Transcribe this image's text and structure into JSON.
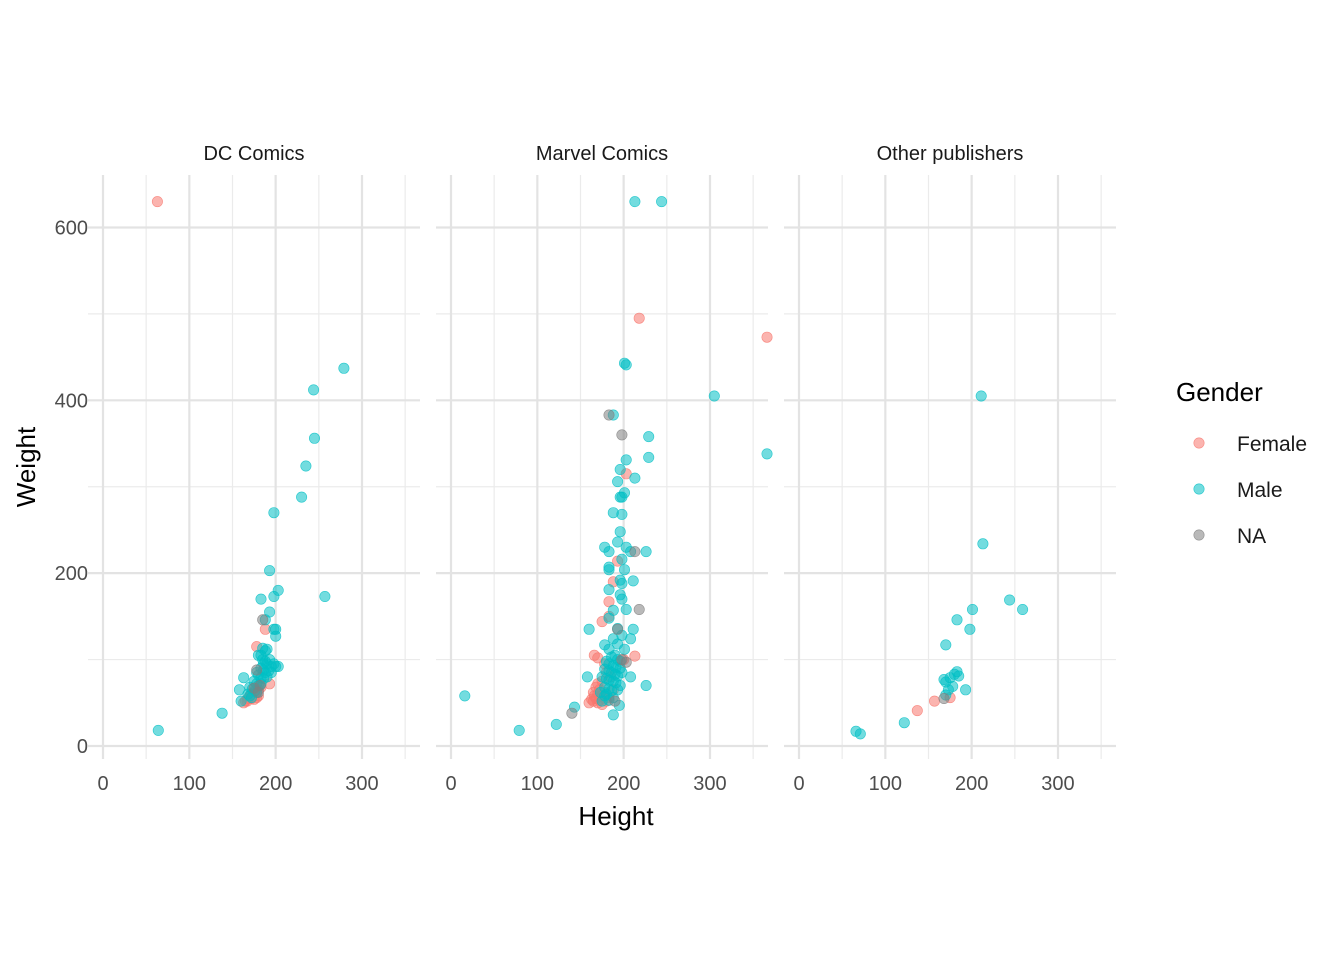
{
  "chart_data": {
    "type": "scatter",
    "xlabel": "Height",
    "ylabel": "Weight",
    "xlim": [
      0,
      375
    ],
    "ylim": [
      -15,
      660
    ],
    "x_ticks": [
      0,
      100,
      200,
      300
    ],
    "y_ticks": [
      0,
      200,
      400,
      600
    ],
    "grid": true,
    "legend": {
      "title": "Gender",
      "position": "right",
      "entries": [
        {
          "label": "Female",
          "color": "#F8766D"
        },
        {
          "label": "Male",
          "color": "#00BFC4"
        },
        {
          "label": "NA",
          "color": "#7F7F7F"
        }
      ]
    },
    "point_opacity": 0.55,
    "panels": [
      {
        "title": "DC Comics",
        "series": [
          {
            "name": "Female",
            "points": [
              [
                63,
                630
              ],
              [
                178,
                115
              ],
              [
                188,
                135
              ],
              [
                193,
                72
              ],
              [
                165,
                52
              ],
              [
                168,
                55
              ],
              [
                170,
                58
              ],
              [
                172,
                55
              ],
              [
                175,
                54
              ],
              [
                178,
                56
              ],
              [
                180,
                58
              ],
              [
                163,
                50
              ],
              [
                167,
                52
              ],
              [
                172,
                60
              ],
              [
                176,
                62
              ],
              [
                180,
                65
              ],
              [
                183,
                68
              ]
            ]
          },
          {
            "name": "Male",
            "points": [
              [
                64,
                18
              ],
              [
                138,
                38
              ],
              [
                160,
                52
              ],
              [
                158,
                65
              ],
              [
                163,
                79
              ],
              [
                279,
                437
              ],
              [
                244,
                412
              ],
              [
                245,
                356
              ],
              [
                235,
                324
              ],
              [
                230,
                288
              ],
              [
                198,
                270
              ],
              [
                193,
                203
              ],
              [
                203,
                180
              ],
              [
                198,
                173
              ],
              [
                183,
                170
              ],
              [
                188,
                146
              ],
              [
                193,
                155
              ],
              [
                198,
                135
              ],
              [
                200,
                135
              ],
              [
                200,
                127
              ],
              [
                185,
                113
              ],
              [
                190,
                112
              ],
              [
                180,
                105
              ],
              [
                185,
                100
              ],
              [
                188,
                98
              ],
              [
                190,
                95
              ],
              [
                193,
                100
              ],
              [
                195,
                92
              ],
              [
                198,
                95
              ],
              [
                200,
                92
              ],
              [
                203,
                92
              ],
              [
                183,
                90
              ],
              [
                186,
                88
              ],
              [
                188,
                85
              ],
              [
                192,
                87
              ],
              [
                195,
                85
              ],
              [
                178,
                85
              ],
              [
                180,
                82
              ],
              [
                183,
                79
              ],
              [
                186,
                78
              ],
              [
                190,
                80
              ],
              [
                175,
                75
              ],
              [
                178,
                72
              ],
              [
                180,
                70
              ],
              [
                183,
                72
              ],
              [
                170,
                68
              ],
              [
                173,
                66
              ],
              [
                176,
                64
              ],
              [
                178,
                62
              ],
              [
                168,
                60
              ],
              [
                170,
                58
              ],
              [
                172,
                56
              ],
              [
                257,
                173
              ],
              [
                188,
                110
              ],
              [
                183,
                105
              ],
              [
                186,
                95
              ]
            ]
          },
          {
            "name": "NA",
            "points": [
              [
                185,
                146
              ],
              [
                178,
                88
              ],
              [
                182,
                70
              ],
              [
                175,
                67
              ],
              [
                180,
                62
              ]
            ]
          }
        ]
      },
      {
        "title": "Marvel Comics",
        "series": [
          {
            "name": "Female",
            "points": [
              [
                218,
                495
              ],
              [
                366,
                473
              ],
              [
                203,
                315
              ],
              [
                193,
                214
              ],
              [
                188,
                190
              ],
              [
                183,
                167
              ],
              [
                183,
                150
              ],
              [
                175,
                144
              ],
              [
                166,
                105
              ],
              [
                170,
                102
              ],
              [
                213,
                104
              ],
              [
                200,
                100
              ],
              [
                178,
                95
              ],
              [
                180,
                85
              ],
              [
                185,
                80
              ],
              [
                175,
                75
              ],
              [
                170,
                72
              ],
              [
                168,
                68
              ],
              [
                172,
                65
              ],
              [
                165,
                62
              ],
              [
                170,
                60
              ],
              [
                175,
                58
              ],
              [
                178,
                55
              ],
              [
                168,
                55
              ],
              [
                172,
                53
              ],
              [
                165,
                52
              ],
              [
                170,
                50
              ],
              [
                175,
                48
              ],
              [
                180,
                52
              ],
              [
                183,
                56
              ],
              [
                178,
                62
              ],
              [
                188,
                65
              ],
              [
                160,
                50
              ],
              [
                163,
                54
              ],
              [
                166,
                58
              ]
            ]
          },
          {
            "name": "Male",
            "points": [
              [
                213,
                630
              ],
              [
                244,
                630
              ],
              [
                203,
                441
              ],
              [
                201,
                443
              ],
              [
                305,
                405
              ],
              [
                366,
                338
              ],
              [
                188,
                383
              ],
              [
                229,
                358
              ],
              [
                229,
                334
              ],
              [
                203,
                331
              ],
              [
                196,
                320
              ],
              [
                213,
                310
              ],
              [
                193,
                306
              ],
              [
                201,
                293
              ],
              [
                198,
                288
              ],
              [
                196,
                288
              ],
              [
                188,
                270
              ],
              [
                198,
                268
              ],
              [
                196,
                248
              ],
              [
                193,
                236
              ],
              [
                178,
                230
              ],
              [
                203,
                230
              ],
              [
                183,
                225
              ],
              [
                226,
                225
              ],
              [
                198,
                216
              ],
              [
                208,
                225
              ],
              [
                183,
                207
              ],
              [
                183,
                204
              ],
              [
                201,
                204
              ],
              [
                196,
                192
              ],
              [
                211,
                191
              ],
              [
                198,
                188
              ],
              [
                183,
                181
              ],
              [
                196,
                175
              ],
              [
                198,
                170
              ],
              [
                203,
                158
              ],
              [
                188,
                157
              ],
              [
                183,
                148
              ],
              [
                193,
                136
              ],
              [
                160,
                135
              ],
              [
                211,
                135
              ],
              [
                198,
                128
              ],
              [
                208,
                124
              ],
              [
                188,
                124
              ],
              [
                193,
                118
              ],
              [
                178,
                117
              ],
              [
                183,
                112
              ],
              [
                201,
                112
              ],
              [
                190,
                105
              ],
              [
                186,
                103
              ],
              [
                193,
                100
              ],
              [
                196,
                98
              ],
              [
                180,
                98
              ],
              [
                183,
                95
              ],
              [
                188,
                93
              ],
              [
                191,
                91
              ],
              [
                196,
                90
              ],
              [
                178,
                89
              ],
              [
                183,
                87
              ],
              [
                186,
                85
              ],
              [
                190,
                83
              ],
              [
                193,
                81
              ],
              [
                175,
                80
              ],
              [
                180,
                78
              ],
              [
                183,
                76
              ],
              [
                188,
                75
              ],
              [
                191,
                73
              ],
              [
                196,
                70
              ],
              [
                178,
                68
              ],
              [
                183,
                66
              ],
              [
                186,
                64
              ],
              [
                173,
                62
              ],
              [
                180,
                60
              ],
              [
                226,
                70
              ],
              [
                208,
                80
              ],
              [
                198,
                85
              ],
              [
                193,
                65
              ],
              [
                178,
                58
              ],
              [
                188,
                56
              ],
              [
                183,
                53
              ],
              [
                175,
                52
              ],
              [
                195,
                47
              ],
              [
                188,
                36
              ],
              [
                158,
                80
              ],
              [
                143,
                45
              ],
              [
                16,
                58
              ],
              [
                79,
                18
              ],
              [
                122,
                25
              ]
            ]
          },
          {
            "name": "NA",
            "points": [
              [
                183,
                383
              ],
              [
                198,
                360
              ],
              [
                213,
                225
              ],
              [
                218,
                158
              ],
              [
                193,
                135
              ],
              [
                198,
                100
              ],
              [
                203,
                97
              ],
              [
                140,
                38
              ],
              [
                190,
                52
              ]
            ]
          }
        ]
      },
      {
        "title": "Other publishers",
        "series": [
          {
            "name": "Female",
            "points": [
              [
                137,
                41
              ],
              [
                157,
                52
              ],
              [
                175,
                56
              ]
            ]
          },
          {
            "name": "Male",
            "points": [
              [
                211,
                405
              ],
              [
                213,
                234
              ],
              [
                244,
                169
              ],
              [
                259,
                158
              ],
              [
                201,
                158
              ],
              [
                183,
                146
              ],
              [
                198,
                135
              ],
              [
                170,
                117
              ],
              [
                183,
                86
              ],
              [
                180,
                83
              ],
              [
                185,
                81
              ],
              [
                175,
                79
              ],
              [
                168,
                77
              ],
              [
                170,
                74
              ],
              [
                178,
                69
              ],
              [
                173,
                65
              ],
              [
                193,
                65
              ],
              [
                170,
                59
              ],
              [
                122,
                27
              ],
              [
                66,
                17
              ],
              [
                71,
                14
              ]
            ]
          },
          {
            "name": "NA",
            "points": [
              [
                168,
                55
              ]
            ]
          }
        ]
      }
    ]
  }
}
